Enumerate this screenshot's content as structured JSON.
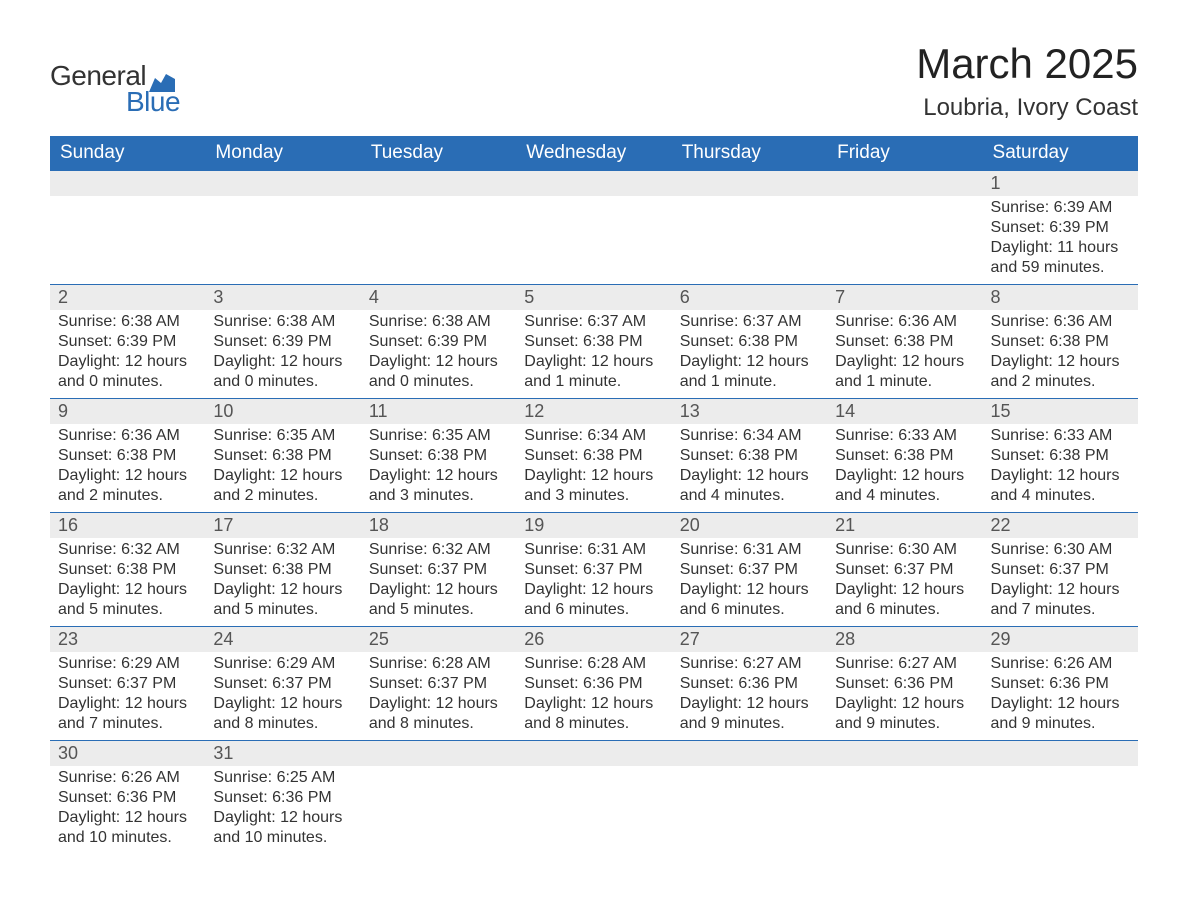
{
  "logo": {
    "text1": "General",
    "text2": "Blue",
    "tri_color": "#2a6db5"
  },
  "title": "March 2025",
  "location": "Loubria, Ivory Coast",
  "colors": {
    "header_bg": "#2a6db5",
    "header_fg": "#ffffff",
    "daynum_bg": "#ececec",
    "border": "#2a6db5",
    "text": "#333333"
  },
  "weekdays": [
    "Sunday",
    "Monday",
    "Tuesday",
    "Wednesday",
    "Thursday",
    "Friday",
    "Saturday"
  ],
  "weeks": [
    [
      null,
      null,
      null,
      null,
      null,
      null,
      {
        "n": "1",
        "sunrise": "6:39 AM",
        "sunset": "6:39 PM",
        "daylight": "11 hours and 59 minutes."
      }
    ],
    [
      {
        "n": "2",
        "sunrise": "6:38 AM",
        "sunset": "6:39 PM",
        "daylight": "12 hours and 0 minutes."
      },
      {
        "n": "3",
        "sunrise": "6:38 AM",
        "sunset": "6:39 PM",
        "daylight": "12 hours and 0 minutes."
      },
      {
        "n": "4",
        "sunrise": "6:38 AM",
        "sunset": "6:39 PM",
        "daylight": "12 hours and 0 minutes."
      },
      {
        "n": "5",
        "sunrise": "6:37 AM",
        "sunset": "6:38 PM",
        "daylight": "12 hours and 1 minute."
      },
      {
        "n": "6",
        "sunrise": "6:37 AM",
        "sunset": "6:38 PM",
        "daylight": "12 hours and 1 minute."
      },
      {
        "n": "7",
        "sunrise": "6:36 AM",
        "sunset": "6:38 PM",
        "daylight": "12 hours and 1 minute."
      },
      {
        "n": "8",
        "sunrise": "6:36 AM",
        "sunset": "6:38 PM",
        "daylight": "12 hours and 2 minutes."
      }
    ],
    [
      {
        "n": "9",
        "sunrise": "6:36 AM",
        "sunset": "6:38 PM",
        "daylight": "12 hours and 2 minutes."
      },
      {
        "n": "10",
        "sunrise": "6:35 AM",
        "sunset": "6:38 PM",
        "daylight": "12 hours and 2 minutes."
      },
      {
        "n": "11",
        "sunrise": "6:35 AM",
        "sunset": "6:38 PM",
        "daylight": "12 hours and 3 minutes."
      },
      {
        "n": "12",
        "sunrise": "6:34 AM",
        "sunset": "6:38 PM",
        "daylight": "12 hours and 3 minutes."
      },
      {
        "n": "13",
        "sunrise": "6:34 AM",
        "sunset": "6:38 PM",
        "daylight": "12 hours and 4 minutes."
      },
      {
        "n": "14",
        "sunrise": "6:33 AM",
        "sunset": "6:38 PM",
        "daylight": "12 hours and 4 minutes."
      },
      {
        "n": "15",
        "sunrise": "6:33 AM",
        "sunset": "6:38 PM",
        "daylight": "12 hours and 4 minutes."
      }
    ],
    [
      {
        "n": "16",
        "sunrise": "6:32 AM",
        "sunset": "6:38 PM",
        "daylight": "12 hours and 5 minutes."
      },
      {
        "n": "17",
        "sunrise": "6:32 AM",
        "sunset": "6:38 PM",
        "daylight": "12 hours and 5 minutes."
      },
      {
        "n": "18",
        "sunrise": "6:32 AM",
        "sunset": "6:37 PM",
        "daylight": "12 hours and 5 minutes."
      },
      {
        "n": "19",
        "sunrise": "6:31 AM",
        "sunset": "6:37 PM",
        "daylight": "12 hours and 6 minutes."
      },
      {
        "n": "20",
        "sunrise": "6:31 AM",
        "sunset": "6:37 PM",
        "daylight": "12 hours and 6 minutes."
      },
      {
        "n": "21",
        "sunrise": "6:30 AM",
        "sunset": "6:37 PM",
        "daylight": "12 hours and 6 minutes."
      },
      {
        "n": "22",
        "sunrise": "6:30 AM",
        "sunset": "6:37 PM",
        "daylight": "12 hours and 7 minutes."
      }
    ],
    [
      {
        "n": "23",
        "sunrise": "6:29 AM",
        "sunset": "6:37 PM",
        "daylight": "12 hours and 7 minutes."
      },
      {
        "n": "24",
        "sunrise": "6:29 AM",
        "sunset": "6:37 PM",
        "daylight": "12 hours and 8 minutes."
      },
      {
        "n": "25",
        "sunrise": "6:28 AM",
        "sunset": "6:37 PM",
        "daylight": "12 hours and 8 minutes."
      },
      {
        "n": "26",
        "sunrise": "6:28 AM",
        "sunset": "6:36 PM",
        "daylight": "12 hours and 8 minutes."
      },
      {
        "n": "27",
        "sunrise": "6:27 AM",
        "sunset": "6:36 PM",
        "daylight": "12 hours and 9 minutes."
      },
      {
        "n": "28",
        "sunrise": "6:27 AM",
        "sunset": "6:36 PM",
        "daylight": "12 hours and 9 minutes."
      },
      {
        "n": "29",
        "sunrise": "6:26 AM",
        "sunset": "6:36 PM",
        "daylight": "12 hours and 9 minutes."
      }
    ],
    [
      {
        "n": "30",
        "sunrise": "6:26 AM",
        "sunset": "6:36 PM",
        "daylight": "12 hours and 10 minutes."
      },
      {
        "n": "31",
        "sunrise": "6:25 AM",
        "sunset": "6:36 PM",
        "daylight": "12 hours and 10 minutes."
      },
      null,
      null,
      null,
      null,
      null
    ]
  ],
  "labels": {
    "sunrise": "Sunrise:",
    "sunset": "Sunset:",
    "daylight": "Daylight:"
  }
}
